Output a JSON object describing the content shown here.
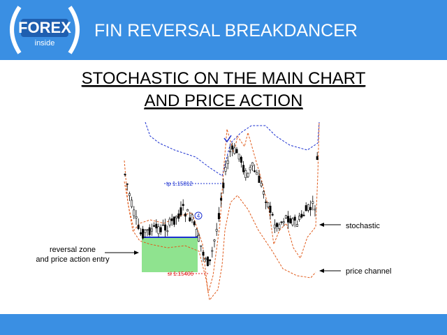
{
  "header": {
    "logo": {
      "brand": "FOREX",
      "tagline": "inside"
    },
    "title": "FIN REVERSAL BREAKDANCER"
  },
  "heading": {
    "line1": "STOCHASTIC ON THE MAIN CHART",
    "line2": "AND PRICE ACTION"
  },
  "chart": {
    "tp_label": "tp 1.15812",
    "sl_label": "sl 1.15406",
    "signal_label": "4"
  },
  "annotations": {
    "zone_line1": "reversal zone",
    "zone_line2": "and price action entry",
    "stochastic": "stochastic",
    "price_channel": "price channel"
  }
}
